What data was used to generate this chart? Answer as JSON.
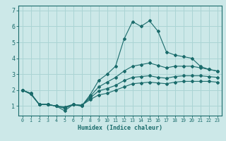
{
  "xlabel": "Humidex (Indice chaleur)",
  "ylabel": "",
  "bg_color": "#cce8e8",
  "line_color": "#1a6b6b",
  "grid_color": "#aad4d4",
  "x_ticks": [
    0,
    1,
    2,
    3,
    4,
    5,
    6,
    7,
    8,
    9,
    10,
    11,
    12,
    13,
    14,
    15,
    16,
    17,
    18,
    19,
    20,
    21,
    22,
    23
  ],
  "y_ticks": [
    1,
    2,
    3,
    4,
    5,
    6,
    7
  ],
  "ylim": [
    0.4,
    7.3
  ],
  "xlim": [
    -0.5,
    23.5
  ],
  "series": [
    [
      2.0,
      1.8,
      1.1,
      1.1,
      1.0,
      0.7,
      1.1,
      1.0,
      1.7,
      2.6,
      3.0,
      3.5,
      5.2,
      6.3,
      6.0,
      6.35,
      5.7,
      4.4,
      4.2,
      4.1,
      4.0,
      3.5,
      3.3,
      3.2
    ],
    [
      2.0,
      1.8,
      1.1,
      1.1,
      1.0,
      0.85,
      1.1,
      1.0,
      1.6,
      2.2,
      2.5,
      2.8,
      3.2,
      3.5,
      3.6,
      3.7,
      3.55,
      3.4,
      3.5,
      3.5,
      3.5,
      3.4,
      3.3,
      3.2
    ],
    [
      2.0,
      1.75,
      1.1,
      1.1,
      1.0,
      0.9,
      1.1,
      1.05,
      1.5,
      1.95,
      2.1,
      2.3,
      2.6,
      2.8,
      2.85,
      2.9,
      2.8,
      2.75,
      2.85,
      2.9,
      2.9,
      2.9,
      2.85,
      2.8
    ],
    [
      2.0,
      1.75,
      1.1,
      1.1,
      1.0,
      0.95,
      1.1,
      1.05,
      1.4,
      1.7,
      1.8,
      2.0,
      2.2,
      2.4,
      2.45,
      2.5,
      2.45,
      2.4,
      2.5,
      2.55,
      2.55,
      2.55,
      2.55,
      2.5
    ]
  ]
}
